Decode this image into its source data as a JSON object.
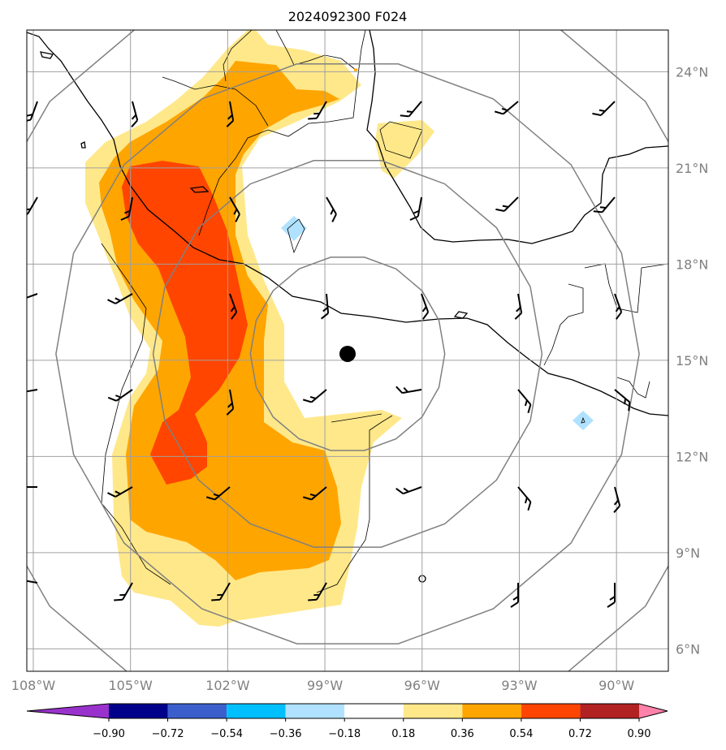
{
  "chart_data": {
    "type": "contour-map",
    "title": "2024092300 F024",
    "lon_ticks": [
      "108°W",
      "105°W",
      "102°W",
      "99°W",
      "96°W",
      "93°W",
      "90°W"
    ],
    "lon_values": [
      -108,
      -105,
      -102,
      -99,
      -96,
      -93,
      -90
    ],
    "lat_ticks": [
      "24°N",
      "21°N",
      "18°N",
      "15°N",
      "12°N",
      "9°N",
      "6°N"
    ],
    "lat_values": [
      24,
      21,
      18,
      15,
      12,
      9,
      6
    ],
    "lon_range": [
      -108.2,
      -88.4
    ],
    "lat_range": [
      5.3,
      25.3
    ],
    "grid": true,
    "center_marker": {
      "lon": -98.3,
      "lat": 15.2
    },
    "range_rings_deg": [
      3,
      6,
      9,
      12
    ],
    "colorbar": {
      "levels": [
        "−0.90",
        "−0.72",
        "−0.54",
        "−0.36",
        "−0.18",
        "0.18",
        "0.36",
        "0.54",
        "0.72",
        "0.90"
      ],
      "colors": [
        "#9932cc",
        "#00008b",
        "#3a5fcd",
        "#00bfff",
        "#b0e2ff",
        "#ffffff",
        "#ffe88a",
        "#ffa500",
        "#ff4500",
        "#b22222",
        "#ff82ab"
      ],
      "extend": "both"
    }
  }
}
